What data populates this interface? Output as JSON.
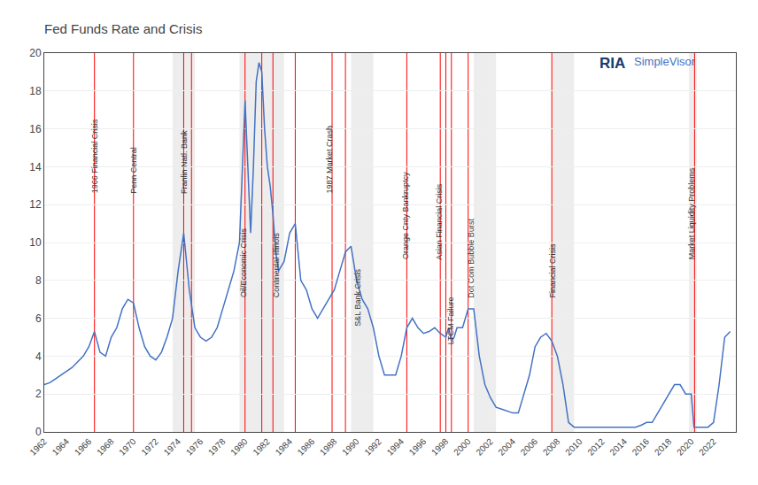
{
  "chart_data": {
    "type": "line",
    "title": "Fed Funds Rate and Crisis",
    "color": "#4472c4",
    "x": [
      1962,
      1962.5,
      1963,
      1963.5,
      1964,
      1964.5,
      1965,
      1965.5,
      1966,
      1966.5,
      1967,
      1967.5,
      1968,
      1968.5,
      1969,
      1969.5,
      1970,
      1970.5,
      1971,
      1971.5,
      1972,
      1972.5,
      1973,
      1973.5,
      1974,
      1974.5,
      1975,
      1975.5,
      1976,
      1976.5,
      1977,
      1977.5,
      1978,
      1978.5,
      1979,
      1979.5,
      1980,
      1980.25,
      1980.5,
      1980.75,
      1981,
      1981.25,
      1981.5,
      1981.75,
      1982,
      1982.25,
      1982.5,
      1982.75,
      1983,
      1983.5,
      1984,
      1984.5,
      1985,
      1985.5,
      1986,
      1986.5,
      1987,
      1987.5,
      1988,
      1988.5,
      1989,
      1989.5,
      1990,
      1990.5,
      1991,
      1991.5,
      1992,
      1992.5,
      1993,
      1993.5,
      1994,
      1994.5,
      1995,
      1995.5,
      1996,
      1996.5,
      1997,
      1997.5,
      1998,
      1998.25,
      1998.5,
      1998.75,
      1999,
      1999.5,
      2000,
      2000.5,
      2001,
      2001.5,
      2002,
      2002.5,
      2003,
      2003.5,
      2004,
      2004.5,
      2005,
      2005.5,
      2006,
      2006.5,
      2007,
      2007.5,
      2008,
      2008.5,
      2009,
      2009.5,
      2010,
      2010.5,
      2011,
      2011.5,
      2012,
      2012.5,
      2013,
      2013.5,
      2014,
      2014.5,
      2015,
      2015.5,
      2016,
      2016.5,
      2017,
      2017.5,
      2018,
      2018.5,
      2019,
      2019.5,
      2020,
      2020.25,
      2020.5,
      2020.75,
      2021,
      2021.5,
      2022,
      2022.5,
      2023,
      2023.5
    ],
    "values": [
      2.5,
      2.6,
      2.8,
      3.0,
      3.2,
      3.4,
      3.7,
      4.0,
      4.5,
      5.3,
      4.2,
      4.0,
      5.0,
      5.5,
      6.5,
      7.0,
      6.8,
      5.5,
      4.5,
      4.0,
      3.8,
      4.2,
      5.0,
      6.0,
      8.5,
      10.5,
      7.5,
      5.5,
      5.0,
      4.8,
      5.0,
      5.5,
      6.5,
      7.5,
      8.5,
      10.0,
      17.5,
      14.0,
      10.5,
      14.0,
      18.5,
      19.5,
      19.0,
      16.0,
      14.0,
      13.0,
      11.5,
      9.5,
      8.5,
      9.0,
      10.5,
      11.0,
      8.0,
      7.5,
      6.5,
      6.0,
      6.5,
      7.0,
      7.5,
      8.5,
      9.5,
      9.8,
      8.0,
      7.0,
      6.5,
      5.5,
      4.0,
      3.0,
      3.0,
      3.0,
      4.0,
      5.5,
      6.0,
      5.5,
      5.2,
      5.3,
      5.5,
      5.2,
      5.0,
      5.5,
      4.8,
      5.0,
      5.5,
      5.5,
      6.5,
      6.5,
      4.0,
      2.5,
      1.8,
      1.3,
      1.2,
      1.1,
      1.0,
      1.0,
      2.0,
      3.0,
      4.5,
      5.0,
      5.2,
      4.8,
      4.0,
      2.5,
      0.5,
      0.25,
      0.25,
      0.25,
      0.25,
      0.25,
      0.25,
      0.25,
      0.25,
      0.25,
      0.25,
      0.25,
      0.25,
      0.35,
      0.5,
      0.5,
      1.0,
      1.5,
      2.0,
      2.5,
      2.5,
      2.0,
      2.0,
      0.25,
      0.25,
      0.25,
      0.25,
      0.25,
      0.5,
      2.5,
      5.0,
      5.3
    ],
    "xlim": [
      1962,
      2024
    ],
    "xticks": [
      1962,
      1964,
      1966,
      1968,
      1970,
      1972,
      1974,
      1976,
      1978,
      1980,
      1982,
      1984,
      1986,
      1988,
      1990,
      1992,
      1994,
      1996,
      1998,
      2000,
      2002,
      2004,
      2006,
      2008,
      2010,
      2012,
      2014,
      2016,
      2018,
      2020,
      2022
    ],
    "ylim": [
      0,
      20
    ],
    "yticks": [
      0,
      2,
      4,
      6,
      8,
      10,
      12,
      14,
      16,
      18,
      20
    ],
    "grid": "y",
    "vlines": {
      "color": "#ff0000",
      "x": [
        1966.5,
        1970.0,
        1974.5,
        1975.2,
        1980.0,
        1981.5,
        1982.5,
        1984.5,
        1987.8,
        1989.0,
        1994.5,
        1997.5,
        1998.0,
        1998.5,
        2000.0,
        2007.5,
        2020.3
      ]
    },
    "shade_regions": {
      "color": "#d3d3d3",
      "ranges": [
        [
          1973.5,
          1975.5
        ],
        [
          1979.5,
          1983.5
        ],
        [
          1989.5,
          1991.5
        ],
        [
          2000.5,
          2002.5
        ],
        [
          2007.5,
          2009.5
        ],
        [
          2019.8,
          2020.5
        ]
      ]
    },
    "annotations": [
      {
        "text": "1966 Financial Crisis",
        "x": 1966.5,
        "y": 12.5,
        "color": "#333333"
      },
      {
        "text": "Penn Central",
        "x": 1970.0,
        "y": 12.5,
        "color": "#333333"
      },
      {
        "text": "Franlin Natl. Bank",
        "x": 1974.5,
        "y": 12.5,
        "color": "#333333"
      },
      {
        "text": "Oil/Economic Crisis",
        "x": 1979.8,
        "y": 7.0,
        "color": "#333333"
      },
      {
        "text": "Continental Illinois",
        "x": 1982.8,
        "y": 7.0,
        "color": "#333333"
      },
      {
        "text": "1987 Market Crash",
        "x": 1987.6,
        "y": 12.5,
        "color": "#333333"
      },
      {
        "text": "S&L Bank Crisis",
        "x": 1990.1,
        "y": 5.5,
        "color": "#333333"
      },
      {
        "text": "Orange Cnty Bankruptcy",
        "x": 1994.4,
        "y": 9.0,
        "color": "#333333"
      },
      {
        "text": "Asian Financial Crisis",
        "x": 1997.4,
        "y": 9.0,
        "color": "#333333"
      },
      {
        "text": "LTCM Failure",
        "x": 1998.4,
        "y": 4.5,
        "color": "#333333"
      },
      {
        "text": "Dot Com Bubble Burst",
        "x": 2000.3,
        "y": 7.0,
        "color": "#333333"
      },
      {
        "text": "Financial Crisis",
        "x": 2007.6,
        "y": 7.0,
        "color": "#333333"
      },
      {
        "text": "Market Liquidity Problems",
        "x": 2020.1,
        "y": 9.0,
        "color": "#333333"
      },
      {
        "text": "RIA",
        "color": "#1a3a6b"
      },
      {
        "text": "SimpleVisor",
        "color": "#4472c4"
      }
    ]
  }
}
